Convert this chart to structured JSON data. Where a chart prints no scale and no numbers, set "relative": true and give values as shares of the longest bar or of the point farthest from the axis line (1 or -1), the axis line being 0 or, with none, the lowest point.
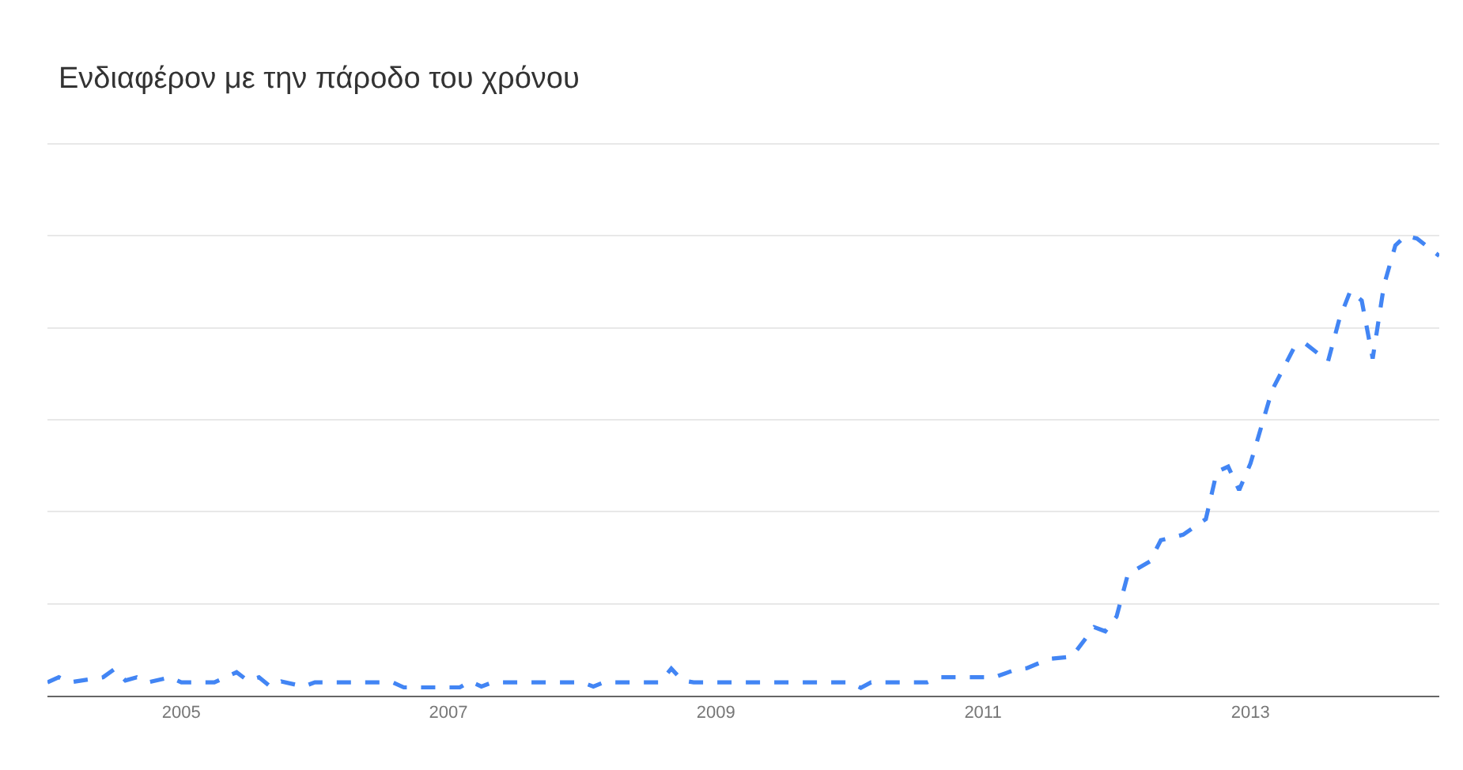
{
  "chart_data": {
    "type": "line",
    "title": "Ενδιαφέρον με την πάροδο του χρόνου",
    "relative": true,
    "grid": "y",
    "line_style": "dashed",
    "marker": "none",
    "xlim": [
      "2004-01",
      "2014-06"
    ],
    "xticks": [
      {
        "value": "2005-01",
        "label": "2005"
      },
      {
        "value": "2007-01",
        "label": "2007"
      },
      {
        "value": "2009-01",
        "label": "2009"
      },
      {
        "value": "2011-01",
        "label": "2011"
      },
      {
        "value": "2013-01",
        "label": "2013"
      }
    ],
    "x": [
      "2004-01",
      "2004-02",
      "2004-03",
      "2004-06",
      "2004-07",
      "2004-08",
      "2004-09",
      "2004-10",
      "2004-12",
      "2005-01",
      "2005-04",
      "2005-06",
      "2005-07",
      "2005-08",
      "2005-09",
      "2005-10",
      "2005-12",
      "2006-01",
      "2006-08",
      "2006-09",
      "2007-02",
      "2007-03",
      "2007-04",
      "2007-05",
      "2008-01",
      "2008-02",
      "2008-03",
      "2008-08",
      "2008-09",
      "2008-10",
      "2008-11",
      "2009-06",
      "2010-01",
      "2010-02",
      "2010-03",
      "2010-08",
      "2010-09",
      "2011-02",
      "2011-04",
      "2011-05",
      "2011-07",
      "2011-09",
      "2011-11",
      "2011-12",
      "2012-01",
      "2012-02",
      "2012-04",
      "2012-05",
      "2012-07",
      "2012-09",
      "2012-10",
      "2012-11",
      "2012-12",
      "2013-01",
      "2013-03",
      "2013-05",
      "2013-06",
      "2013-08",
      "2013-09",
      "2013-10",
      "2013-11",
      "2013-12",
      "2014-01",
      "2014-02",
      "2014-03",
      "2014-04",
      "2014-06"
    ],
    "series": [
      {
        "color": "#4285f4",
        "values": [
          0.029,
          0.04,
          0.029,
          0.04,
          0.057,
          0.033,
          0.04,
          0.029,
          0.04,
          0.029,
          0.029,
          0.051,
          0.033,
          0.04,
          0.02,
          0.031,
          0.02,
          0.029,
          0.029,
          0.018,
          0.018,
          0.031,
          0.02,
          0.029,
          0.029,
          0.02,
          0.029,
          0.029,
          0.059,
          0.033,
          0.029,
          0.029,
          0.029,
          0.017,
          0.029,
          0.029,
          0.04,
          0.04,
          0.057,
          0.06,
          0.08,
          0.085,
          0.149,
          0.14,
          0.172,
          0.264,
          0.292,
          0.338,
          0.35,
          0.384,
          0.487,
          0.498,
          0.447,
          0.505,
          0.664,
          0.758,
          0.765,
          0.727,
          0.819,
          0.88,
          0.859,
          0.733,
          0.893,
          0.979,
          1.0,
          0.994,
          0.956
        ]
      }
    ]
  }
}
